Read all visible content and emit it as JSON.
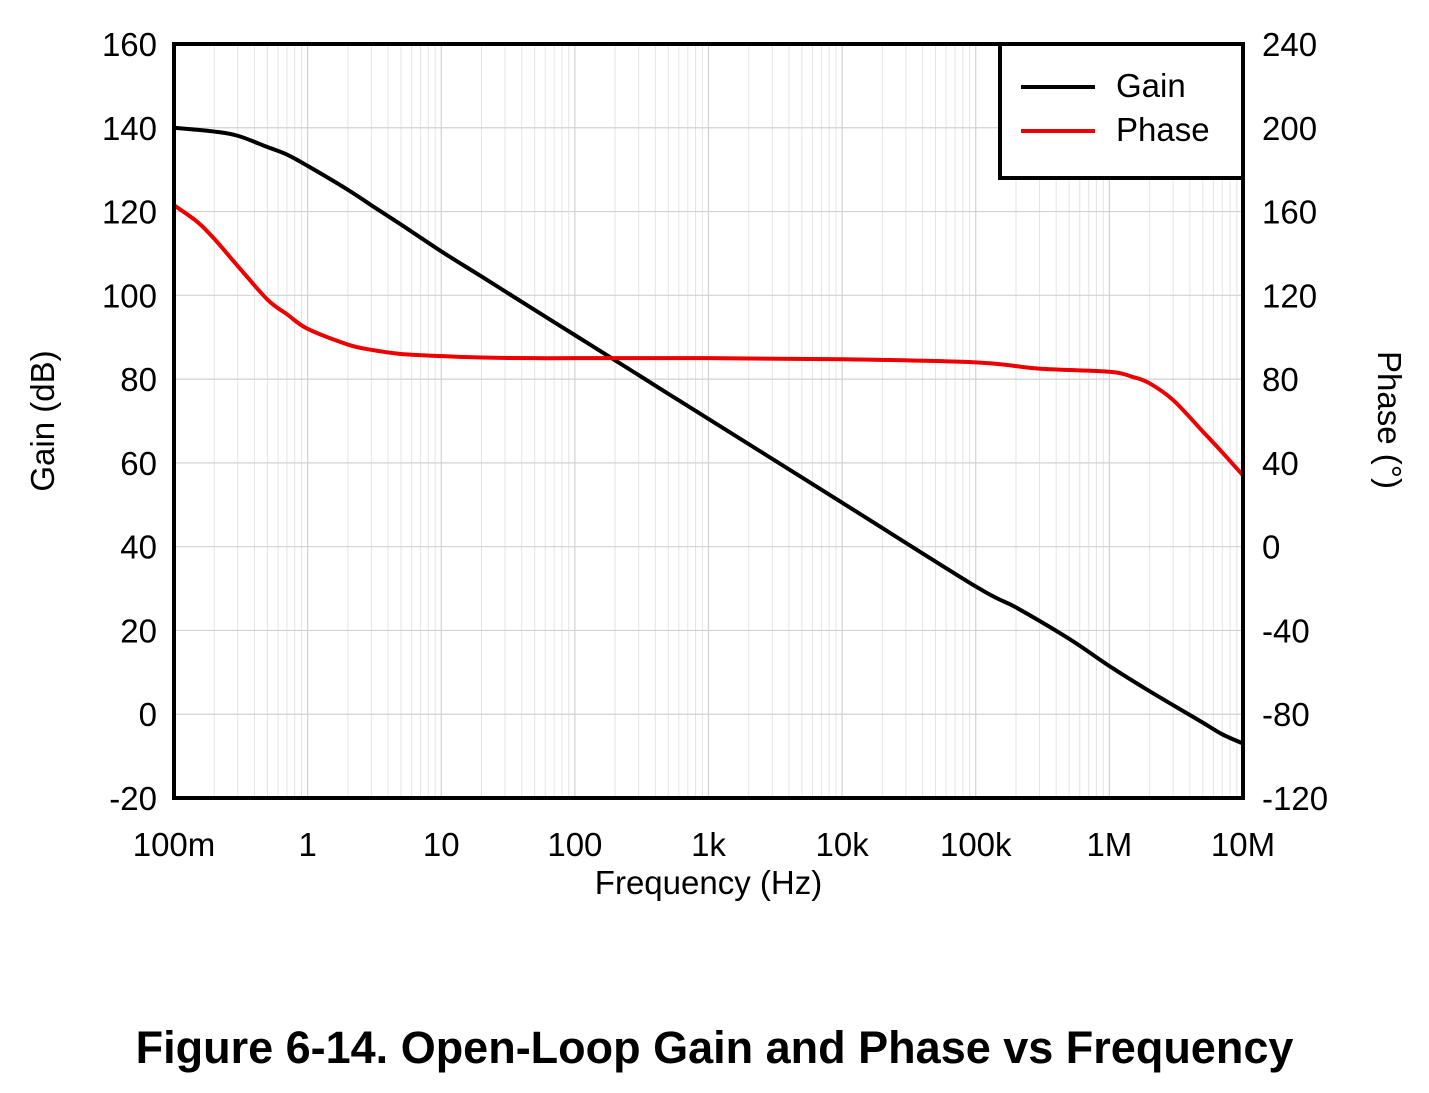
{
  "caption": "Figure 6-14. Open-Loop Gain and Phase vs Frequency",
  "chart_data": {
    "type": "line",
    "title": "Figure 6-14. Open-Loop Gain and Phase vs Frequency",
    "xlabel": "Frequency (Hz)",
    "ylabel": "Gain (dB)",
    "y2label": "Phase (°)",
    "xscale": "log",
    "xlim": [
      0.1,
      10000000
    ],
    "ylim": [
      -20,
      160
    ],
    "y2lim": [
      -120,
      240
    ],
    "grid": true,
    "legend_position": "top-right",
    "x_ticks": [
      0.1,
      1,
      10,
      100,
      1000,
      10000,
      100000,
      1000000,
      10000000
    ],
    "x_tick_labels": [
      "100m",
      "1",
      "10",
      "100",
      "1k",
      "10k",
      "100k",
      "1M",
      "10M"
    ],
    "y_ticks": [
      -20,
      0,
      20,
      40,
      60,
      80,
      100,
      120,
      140,
      160
    ],
    "y_tick_labels": [
      "-20",
      "0",
      "20",
      "40",
      "60",
      "80",
      "100",
      "120",
      "140",
      "160"
    ],
    "y2_ticks": [
      -120,
      -80,
      -40,
      0,
      40,
      80,
      120,
      160,
      200,
      240
    ],
    "y2_tick_labels": [
      "-120",
      "-80",
      "-40",
      "0",
      "40",
      "80",
      "120",
      "160",
      "200",
      "240"
    ],
    "series": [
      {
        "name": "Gain",
        "color": "#000000",
        "axis": "left",
        "x": [
          0.1,
          0.2,
          0.3,
          0.5,
          0.7,
          1,
          2,
          3,
          5,
          10,
          20,
          50,
          100,
          200,
          500,
          1000,
          10000,
          100000,
          200000,
          500000,
          1000000,
          2000000,
          5000000,
          7000000,
          10000000
        ],
        "y": [
          140,
          139.1,
          138.1,
          135.4,
          133.6,
          130.9,
          125.2,
          121.5,
          116.9,
          110.5,
          104.5,
          96.5,
          90.5,
          84.5,
          76.5,
          70.5,
          50.5,
          30.5,
          25.5,
          18,
          11.5,
          5.5,
          -2,
          -4.8,
          -7
        ]
      },
      {
        "name": "Phase",
        "color": "#ee0000",
        "axis": "right",
        "x": [
          0.1,
          0.15,
          0.2,
          0.3,
          0.5,
          0.7,
          1,
          2,
          3,
          5,
          10,
          20,
          50,
          100,
          1000,
          10000,
          100000,
          300000,
          1000000,
          1500000,
          2000000,
          3000000,
          5000000,
          7000000,
          10000000
        ],
        "y": [
          163,
          155,
          147,
          134,
          118,
          111,
          104,
          96.5,
          94,
          92,
          91,
          90.3,
          90,
          90,
          90,
          89.5,
          88,
          85,
          83.5,
          81,
          78,
          70,
          55,
          45,
          34
        ]
      }
    ]
  }
}
